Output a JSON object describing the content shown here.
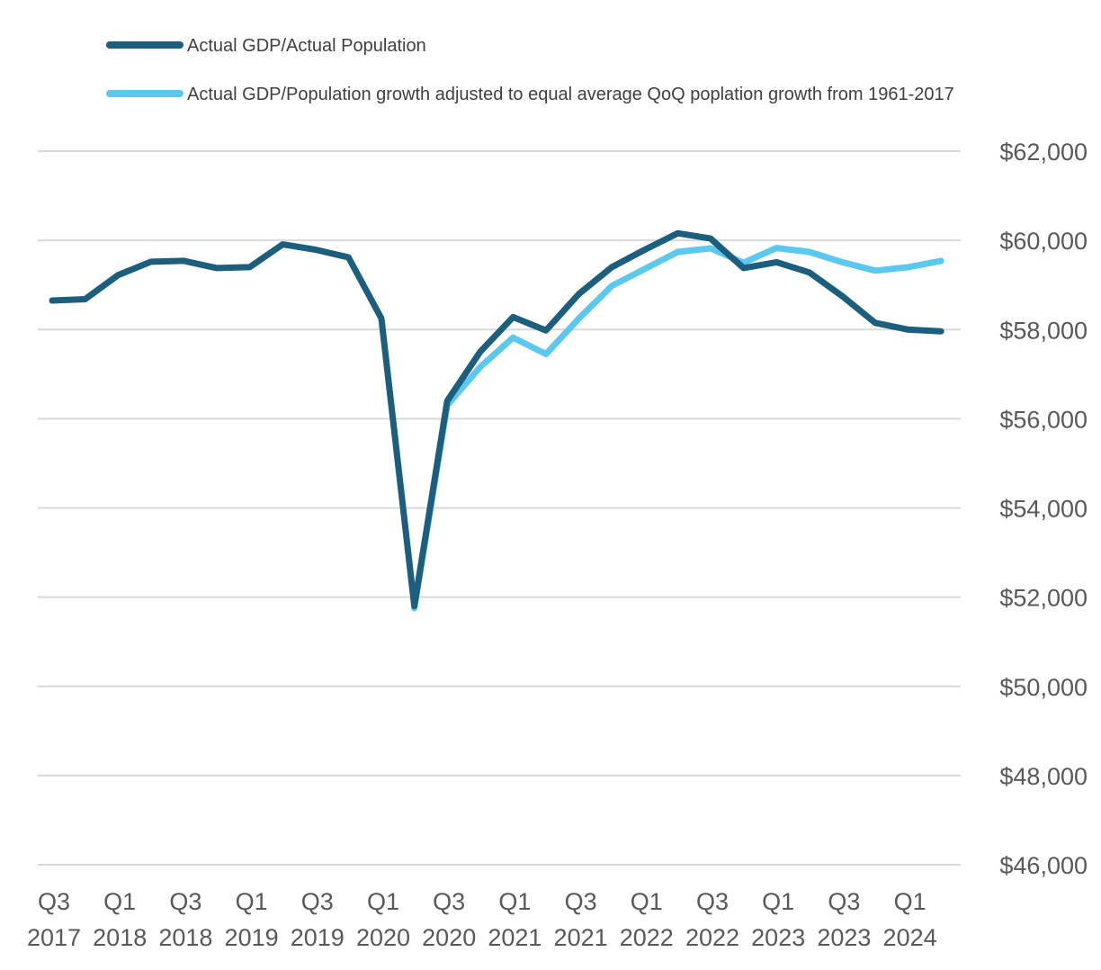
{
  "chart_data": {
    "type": "line",
    "title": "",
    "xlabel": "",
    "ylabel": "",
    "ylim": [
      46000,
      62000
    ],
    "yticks": [
      46000,
      48000,
      50000,
      52000,
      54000,
      56000,
      58000,
      60000,
      62000
    ],
    "ytick_labels": [
      "$46,000",
      "$48,000",
      "$50,000",
      "$52,000",
      "$54,000",
      "$56,000",
      "$58,000",
      "$60,000",
      "$62,000"
    ],
    "y_axis_position": "right",
    "grid": true,
    "legend_position": "top-left",
    "x": [
      "2017Q3",
      "2017Q4",
      "2018Q1",
      "2018Q2",
      "2018Q3",
      "2018Q4",
      "2019Q1",
      "2019Q2",
      "2019Q3",
      "2019Q4",
      "2020Q1",
      "2020Q2",
      "2020Q3",
      "2020Q4",
      "2021Q1",
      "2021Q2",
      "2021Q3",
      "2021Q4",
      "2022Q1",
      "2022Q2",
      "2022Q3",
      "2022Q4",
      "2023Q1",
      "2023Q2",
      "2023Q3",
      "2023Q4",
      "2024Q1",
      "2024Q2"
    ],
    "x_tick_labels": [
      {
        "q": "Q3",
        "y": "2017"
      },
      {
        "q": "Q1",
        "y": "2018"
      },
      {
        "q": "Q3",
        "y": "2018"
      },
      {
        "q": "Q1",
        "y": "2019"
      },
      {
        "q": "Q3",
        "y": "2019"
      },
      {
        "q": "Q1",
        "y": "2020"
      },
      {
        "q": "Q3",
        "y": "2020"
      },
      {
        "q": "Q1",
        "y": "2021"
      },
      {
        "q": "Q3",
        "y": "2021"
      },
      {
        "q": "Q1",
        "y": "2022"
      },
      {
        "q": "Q3",
        "y": "2022"
      },
      {
        "q": "Q1",
        "y": "2023"
      },
      {
        "q": "Q3",
        "y": "2023"
      },
      {
        "q": "Q1",
        "y": "2024"
      }
    ],
    "series": [
      {
        "name": "Actual GDP/Actual Population",
        "color": "#1b5e7e",
        "values": [
          58650,
          58680,
          59220,
          59520,
          59540,
          59380,
          59400,
          59910,
          59790,
          59620,
          58250,
          51800,
          56400,
          57500,
          58280,
          57980,
          58800,
          59400,
          59790,
          60160,
          60040,
          59380,
          59510,
          59280,
          58750,
          58150,
          58000,
          57960
        ]
      },
      {
        "name": "Actual GDP/Population growth adjusted to equal average QoQ poplation growth from 1961-2017",
        "color": "#5bc8ef",
        "values": [
          null,
          null,
          null,
          null,
          null,
          null,
          null,
          null,
          null,
          null,
          null,
          51750,
          56300,
          57160,
          57820,
          57450,
          58250,
          58980,
          59360,
          59740,
          59820,
          59500,
          59830,
          59740,
          59510,
          59320,
          59400,
          59540
        ]
      }
    ]
  }
}
